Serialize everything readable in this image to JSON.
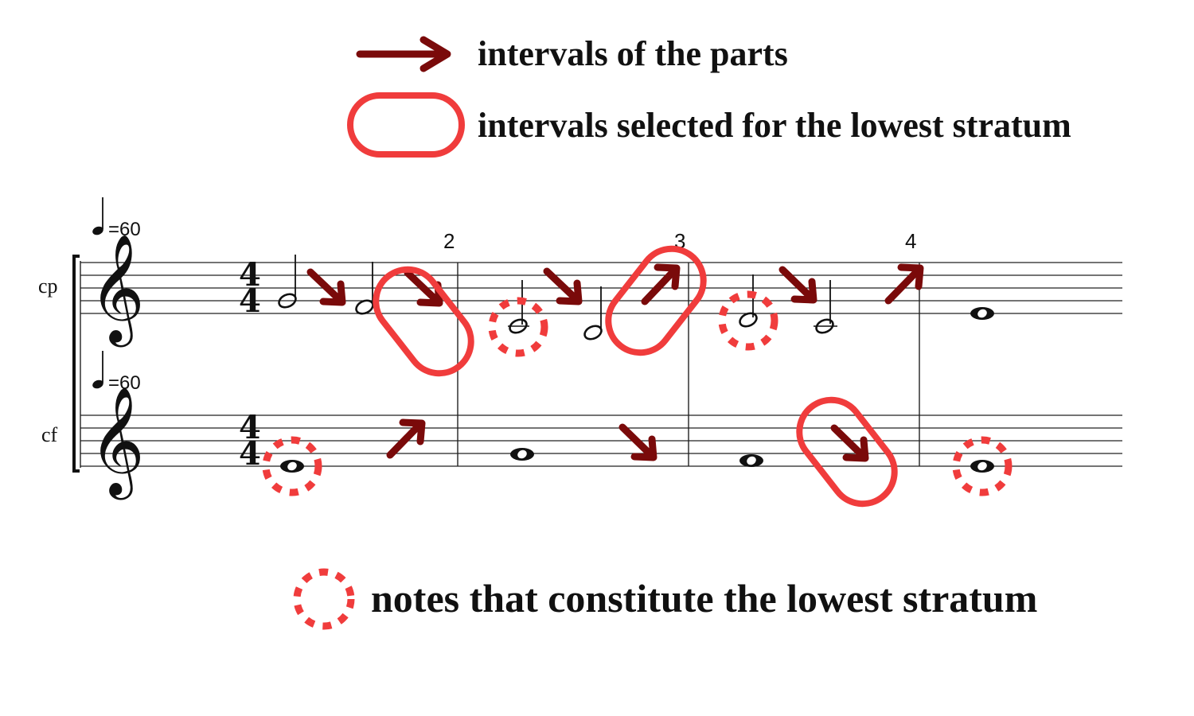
{
  "legend": {
    "parts_intervals": "intervals of the parts",
    "selected_intervals": "intervals selected for the lowest stratum",
    "lowest_notes": "notes that constitute the lowest stratum"
  },
  "score": {
    "parts": [
      {
        "label": "cp",
        "tempo": "=60",
        "time_signature": [
          "4",
          "4"
        ]
      },
      {
        "label": "cf",
        "tempo": "=60",
        "time_signature": [
          "4",
          "4"
        ]
      }
    ],
    "measure_numbers": [
      "2",
      "3",
      "4"
    ],
    "clef_glyph": "𝄞"
  },
  "colors": {
    "arrow": "#7a0a0a",
    "highlight": "#f03c3c",
    "ink": "#111111"
  }
}
